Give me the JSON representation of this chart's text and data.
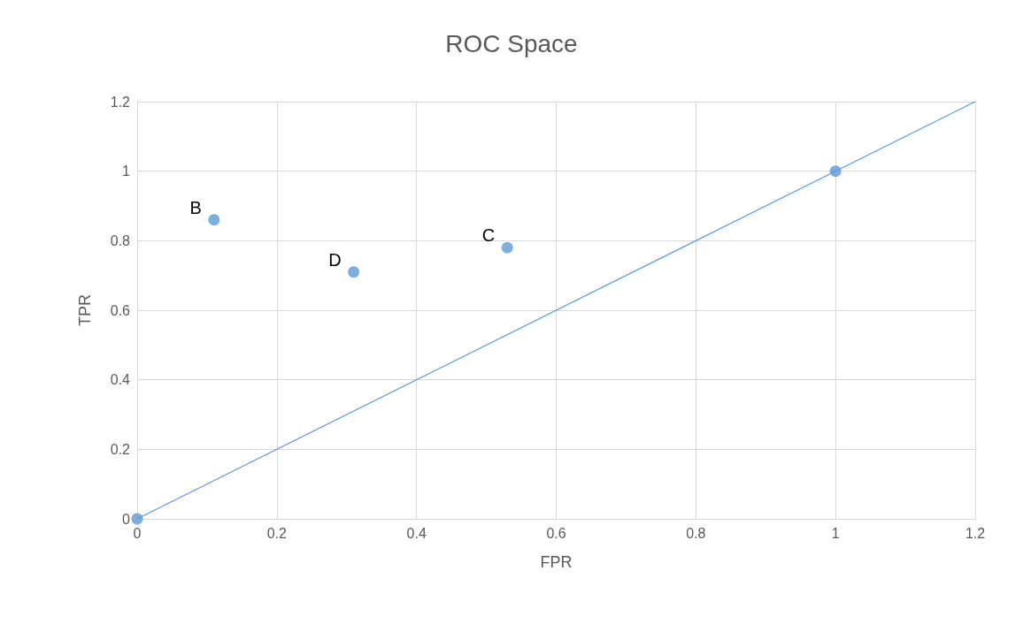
{
  "chart_data": {
    "type": "scatter",
    "title": "ROC Space",
    "xlabel": "FPR",
    "ylabel": "TPR",
    "series": [
      {
        "color": "#5b9bd5",
        "x": [
          0,
          0.11,
          0.31,
          0.53,
          1
        ],
        "values": [
          0,
          0.86,
          0.71,
          0.78,
          1
        ],
        "marker": "circle"
      },
      {
        "type": "line",
        "color": "#5b9bd5",
        "x": [
          0,
          1.2
        ],
        "values": [
          0,
          1.2
        ],
        "marker": "none",
        "line_style": "solid"
      }
    ],
    "annotations": [
      {
        "text": "B",
        "x": 0.11,
        "y": 0.86
      },
      {
        "text": "D",
        "x": 0.31,
        "y": 0.71
      },
      {
        "text": "C",
        "x": 0.53,
        "y": 0.78
      }
    ],
    "xlim": [
      0,
      1.2
    ],
    "xticks": [
      0,
      0.2,
      0.4,
      0.6,
      0.8,
      1,
      1.2
    ],
    "ylim": [
      0,
      1.2
    ],
    "yticks": [
      0,
      0.2,
      0.4,
      0.6,
      0.8,
      1,
      1.2
    ],
    "grid": true
  }
}
